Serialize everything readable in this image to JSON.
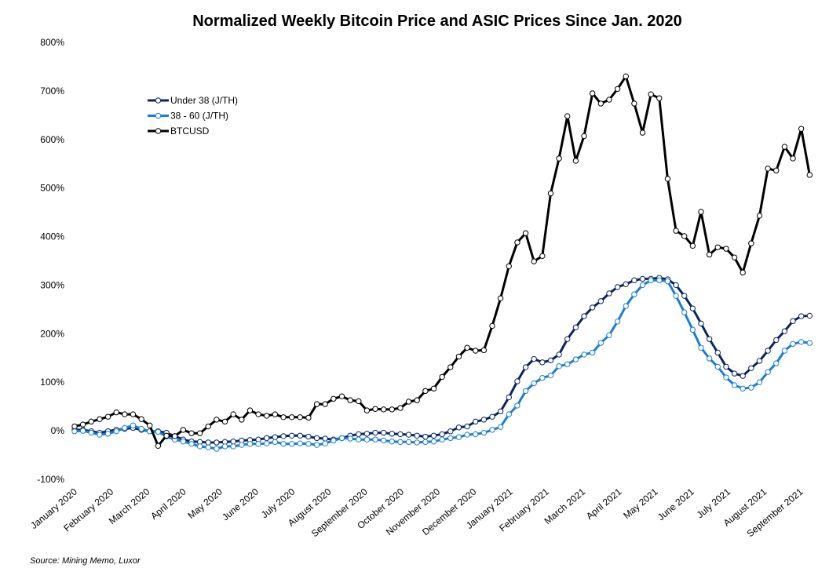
{
  "chart_data": {
    "type": "line",
    "title": "Normalized Weekly Bitcoin Price and ASIC Prices Since Jan. 2020",
    "source": "Source: Mining Memo, Luxor",
    "xlabel": "",
    "ylabel": "",
    "ylim": [
      -100,
      800
    ],
    "y_ticks": [
      "-100%",
      "0%",
      "100%",
      "200%",
      "300%",
      "400%",
      "500%",
      "600%",
      "700%",
      "800%"
    ],
    "x_ticks": [
      "January 2020",
      "February 2020",
      "March 2020",
      "April 2020",
      "May 2020",
      "June 2020",
      "July 2020",
      "August 2020",
      "September 2020",
      "October 2020",
      "November 2020",
      "December 2020",
      "January 2021",
      "February 2021",
      "March 2021",
      "April 2021",
      "May 2021",
      "June 2021",
      "July 2021",
      "August 2021",
      "September 2021"
    ],
    "x_frequency": "weekly",
    "grid": false,
    "legend_position": "top-left",
    "series": [
      {
        "name": "Under 38 (J/TH)",
        "color": "#0c2461",
        "values": [
          2,
          2,
          -1,
          -4,
          -1,
          2,
          4,
          6,
          2,
          -1,
          -1,
          -4,
          -11,
          -18,
          -22,
          -23,
          -24,
          -24,
          -23,
          -22,
          -20,
          -19,
          -18,
          -15,
          -13,
          -11,
          -10,
          -10,
          -12,
          -15,
          -16,
          -18,
          -15,
          -10,
          -7,
          -6,
          -4,
          -4,
          -6,
          -7,
          -8,
          -10,
          -12,
          -10,
          -7,
          -1,
          7,
          9,
          19,
          23,
          29,
          40,
          69,
          102,
          131,
          148,
          141,
          145,
          157,
          189,
          213,
          236,
          254,
          267,
          283,
          296,
          302,
          310,
          313,
          313,
          315,
          312,
          300,
          278,
          252,
          221,
          189,
          161,
          132,
          118,
          113,
          129,
          144,
          165,
          187,
          205,
          226,
          236,
          237
        ]
      },
      {
        "name": "38 - 60 (J/TH)",
        "color": "#1a7fd4",
        "values": [
          -1,
          0,
          -4,
          -8,
          -6,
          -1,
          6,
          11,
          4,
          -1,
          -2,
          -12,
          -18,
          -22,
          -27,
          -32,
          -34,
          -37,
          -32,
          -32,
          -29,
          -27,
          -27,
          -26,
          -23,
          -27,
          -27,
          -26,
          -27,
          -29,
          -26,
          -20,
          -15,
          -16,
          -18,
          -18,
          -18,
          -20,
          -22,
          -23,
          -23,
          -24,
          -23,
          -22,
          -18,
          -15,
          -13,
          -8,
          -7,
          -4,
          2,
          8,
          34,
          52,
          82,
          98,
          109,
          114,
          133,
          137,
          147,
          157,
          161,
          181,
          197,
          225,
          257,
          281,
          300,
          310,
          310,
          308,
          278,
          244,
          208,
          171,
          149,
          132,
          110,
          94,
          87,
          89,
          100,
          121,
          139,
          165,
          179,
          183,
          181
        ]
      },
      {
        "name": "BTCUSD",
        "color": "#000000",
        "values": [
          9,
          13,
          19,
          24,
          29,
          38,
          34,
          34,
          24,
          11,
          -31,
          -10,
          -11,
          2,
          -5,
          -5,
          9,
          23,
          19,
          34,
          23,
          42,
          34,
          31,
          34,
          28,
          28,
          28,
          27,
          55,
          55,
          66,
          71,
          63,
          61,
          42,
          45,
          44,
          44,
          47,
          60,
          63,
          82,
          87,
          111,
          131,
          153,
          171,
          165,
          166,
          216,
          273,
          339,
          388,
          407,
          349,
          360,
          489,
          561,
          648,
          556,
          607,
          695,
          674,
          682,
          704,
          730,
          674,
          614,
          693,
          685,
          519,
          412,
          401,
          381,
          451,
          363,
          378,
          375,
          357,
          326,
          386,
          443,
          540,
          536,
          585,
          561,
          622,
          527
        ]
      }
    ]
  }
}
